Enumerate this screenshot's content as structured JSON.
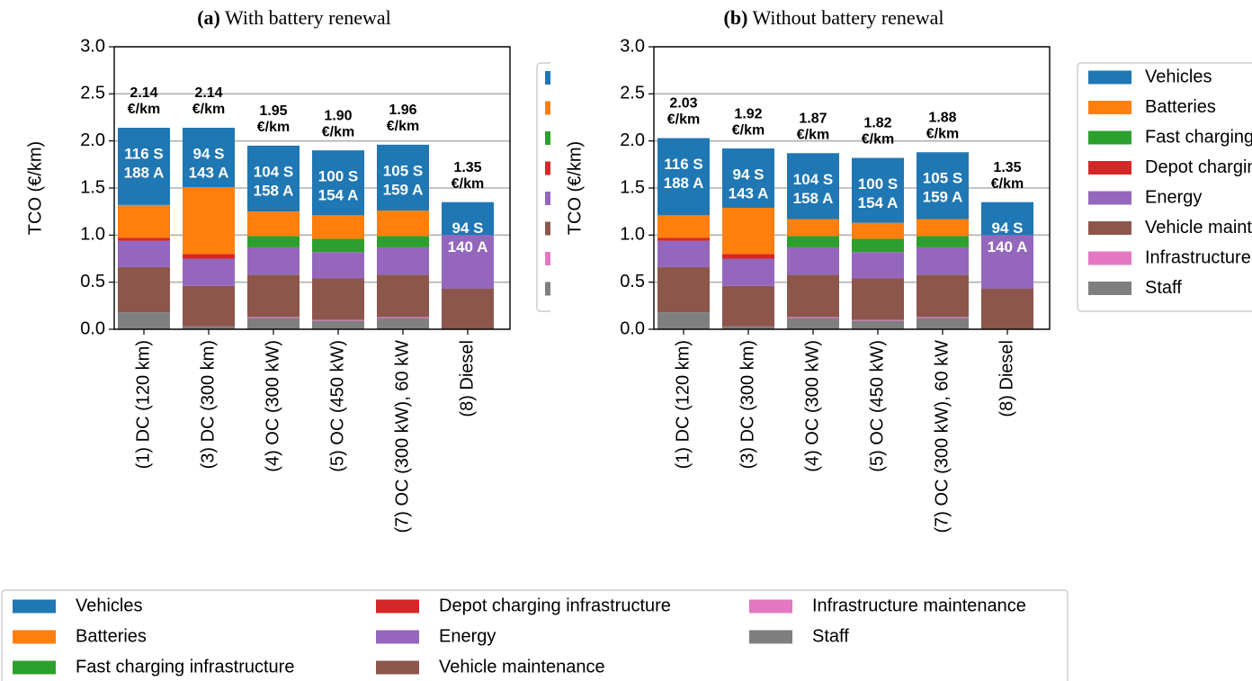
{
  "chart_data": [
    {
      "type": "bar",
      "stacked": true,
      "panel": "(a)",
      "title": "With battery renewal",
      "ylabel": "TCO (€/km)",
      "categories": [
        "(1) DC (120 km)",
        "(3) DC (300 km)",
        "(4) OC (300 kW)",
        "(5) OC (450 kW)",
        "(7) OC (300 kW), 60 kW",
        "(8) Diesel"
      ],
      "ylim": [
        0,
        3
      ],
      "yticks": [
        {
          "value": 0,
          "label": "0.0"
        },
        {
          "value": 0.5,
          "label": "0.5"
        },
        {
          "value": 1,
          "label": "1.0"
        },
        {
          "value": 1.5,
          "label": "1.5"
        },
        {
          "value": 2,
          "label": "2.0"
        },
        {
          "value": 2.5,
          "label": "2.5"
        },
        {
          "value": 3,
          "label": "3.0"
        }
      ],
      "grid": true,
      "series": [
        {
          "name": "Vehicles",
          "color": "#1f77b4",
          "values": [
            0.82,
            0.63,
            0.7,
            0.69,
            0.7,
            0.35
          ]
        },
        {
          "name": "Batteries",
          "color": "#ff7f0e",
          "values": [
            0.35,
            0.71,
            0.26,
            0.25,
            0.27,
            0
          ]
        },
        {
          "name": "Fast charging infrastructure",
          "color": "#2ca02c",
          "values": [
            0,
            0,
            0.12,
            0.14,
            0.12,
            0
          ]
        },
        {
          "name": "Depot charging infrastructure",
          "color": "#d62728",
          "values": [
            0.03,
            0.05,
            0,
            0,
            0,
            0
          ]
        },
        {
          "name": "Energy",
          "color": "#9467bd",
          "values": [
            0.28,
            0.29,
            0.29,
            0.28,
            0.29,
            0.57
          ]
        },
        {
          "name": "Vehicle maintenance",
          "color": "#8c564b",
          "values": [
            0.48,
            0.43,
            0.45,
            0.44,
            0.45,
            0.43
          ]
        },
        {
          "name": "Infrastructure maintenance",
          "color": "#e377c2",
          "values": [
            0,
            0,
            0.01,
            0.01,
            0.01,
            0
          ]
        },
        {
          "name": "Staff",
          "color": "#7f7f7f",
          "values": [
            0.18,
            0.03,
            0.12,
            0.09,
            0.12,
            0
          ]
        }
      ],
      "total_labels": [
        [
          "2.14",
          "€/km"
        ],
        [
          "2.14",
          "€/km"
        ],
        [
          "1.95",
          "€/km"
        ],
        [
          "1.90",
          "€/km"
        ],
        [
          "1.96",
          "€/km"
        ],
        [
          "1.35",
          "€/km"
        ]
      ],
      "fleet_labels": [
        [
          "116 S",
          "188 A"
        ],
        [
          "94 S",
          "143 A"
        ],
        [
          "104 S",
          "158 A"
        ],
        [
          "100 S",
          "154 A"
        ],
        [
          "105 S",
          "159 A"
        ],
        [
          "94 S",
          "140 A"
        ]
      ]
    },
    {
      "type": "bar",
      "stacked": true,
      "panel": "(b)",
      "title": "Without battery renewal",
      "ylabel": "TCO (€/km)",
      "categories": [
        "(1) DC (120 km)",
        "(3) DC (300 km)",
        "(4) OC (300 kW)",
        "(5) OC (450 kW)",
        "(7) OC (300 kW), 60 kW",
        "(8) Diesel"
      ],
      "ylim": [
        0,
        3
      ],
      "yticks": [
        {
          "value": 0,
          "label": "0.0"
        },
        {
          "value": 0.5,
          "label": "0.5"
        },
        {
          "value": 1,
          "label": "1.0"
        },
        {
          "value": 1.5,
          "label": "1.5"
        },
        {
          "value": 2,
          "label": "2.0"
        },
        {
          "value": 2.5,
          "label": "2.5"
        },
        {
          "value": 3,
          "label": "3.0"
        }
      ],
      "grid": true,
      "series": [
        {
          "name": "Vehicles",
          "color": "#1f77b4",
          "values": [
            0.82,
            0.63,
            0.7,
            0.69,
            0.71,
            0.35
          ]
        },
        {
          "name": "Batteries",
          "color": "#ff7f0e",
          "values": [
            0.24,
            0.49,
            0.18,
            0.17,
            0.18,
            0
          ]
        },
        {
          "name": "Fast charging infrastructure",
          "color": "#2ca02c",
          "values": [
            0,
            0,
            0.12,
            0.14,
            0.12,
            0
          ]
        },
        {
          "name": "Depot charging infrastructure",
          "color": "#d62728",
          "values": [
            0.03,
            0.05,
            0,
            0,
            0,
            0
          ]
        },
        {
          "name": "Energy",
          "color": "#9467bd",
          "values": [
            0.28,
            0.29,
            0.29,
            0.28,
            0.29,
            0.57
          ]
        },
        {
          "name": "Vehicle maintenance",
          "color": "#8c564b",
          "values": [
            0.48,
            0.43,
            0.45,
            0.44,
            0.45,
            0.43
          ]
        },
        {
          "name": "Infrastructure maintenance",
          "color": "#e377c2",
          "values": [
            0,
            0,
            0.01,
            0.01,
            0.01,
            0
          ]
        },
        {
          "name": "Staff",
          "color": "#7f7f7f",
          "values": [
            0.18,
            0.03,
            0.12,
            0.09,
            0.12,
            0
          ]
        }
      ],
      "total_labels": [
        [
          "2.03",
          "€/km"
        ],
        [
          "1.92",
          "€/km"
        ],
        [
          "1.87",
          "€/km"
        ],
        [
          "1.82",
          "€/km"
        ],
        [
          "1.88",
          "€/km"
        ],
        [
          "1.35",
          "€/km"
        ]
      ],
      "fleet_labels": [
        [
          "116 S",
          "188 A"
        ],
        [
          "94 S",
          "143 A"
        ],
        [
          "104 S",
          "158 A"
        ],
        [
          "100 S",
          "154 A"
        ],
        [
          "105 S",
          "159 A"
        ],
        [
          "94 S",
          "140 A"
        ]
      ]
    }
  ]
}
